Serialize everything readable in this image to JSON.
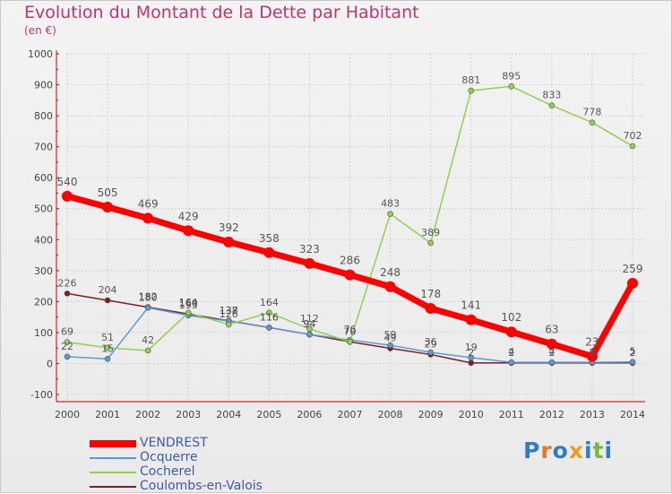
{
  "title": "Evolution du Montant de la Dette par Habitant",
  "subtitle": "(en €)",
  "logo": {
    "text": "Proxiti",
    "letters": [
      "P",
      "r",
      "o",
      "x",
      "i",
      "t",
      "i"
    ],
    "colors": [
      "#2f7dc4",
      "#e8772a",
      "#2f7dc4",
      "#e8a020",
      "#2f7dc4",
      "#7ab83a",
      "#2f7dc4"
    ]
  },
  "colors": {
    "VENDREST": "#ff0000",
    "Ocquerre": "#5b9bd5",
    "Cocherel": "#92d050",
    "Coulombs-en-Valois": "#7b1f22",
    "grid": "#d0d0d0",
    "axis_text": "#444444",
    "value_text": "#555555"
  },
  "chart_data": {
    "type": "line",
    "title": "Evolution du Montant de la Dette par Habitant",
    "subtitle": "(en €)",
    "x": [
      "2000",
      "2001",
      "2002",
      "2003",
      "2004",
      "2005",
      "2006",
      "2007",
      "2008",
      "2009",
      "2010",
      "2011",
      "2012",
      "2013",
      "2014"
    ],
    "ylim": [
      -100,
      1000
    ],
    "yticks": [
      -100,
      0,
      100,
      200,
      300,
      400,
      500,
      600,
      700,
      800,
      900,
      1000
    ],
    "grid": true,
    "legend_position": "bottom-left",
    "series": [
      {
        "name": "VENDREST",
        "values": [
          540,
          505,
          469,
          429,
          392,
          358,
          323,
          286,
          248,
          178,
          141,
          102,
          63,
          23,
          259
        ],
        "labels": [
          "540",
          "505",
          "469",
          "429",
          "392",
          "358",
          "323",
          "286",
          "248",
          "178",
          "141",
          "102",
          "63",
          "23",
          "259"
        ]
      },
      {
        "name": "Ocquerre",
        "values": [
          22,
          15,
          180,
          155,
          137,
          116,
          94,
          76,
          59,
          36,
          19,
          4,
          4,
          4,
          5
        ],
        "labels": [
          "22",
          "15",
          "180",
          "155",
          "137",
          "116",
          "94",
          "76",
          "59",
          "36",
          "19",
          "4",
          "4",
          "4",
          "5"
        ]
      },
      {
        "name": "Cocherel",
        "values": [
          69,
          51,
          42,
          164,
          126,
          164,
          112,
          70,
          483,
          389,
          881,
          895,
          833,
          778,
          702
        ],
        "labels": [
          "69",
          "51",
          "42",
          "164",
          "126",
          "164",
          "112",
          "70",
          "483",
          "389",
          "881",
          "895",
          "833",
          "778",
          "702"
        ]
      },
      {
        "name": "Coulombs-en-Valois",
        "values": [
          226,
          204,
          182,
          160,
          138,
          116,
          94,
          70,
          49,
          29,
          2,
          2,
          2,
          2,
          2
        ],
        "labels": [
          "226",
          "204",
          "182",
          "160",
          "138",
          "116",
          "94",
          "70",
          "49",
          "29",
          "2",
          "2",
          "2",
          "2",
          "2"
        ]
      }
    ]
  }
}
